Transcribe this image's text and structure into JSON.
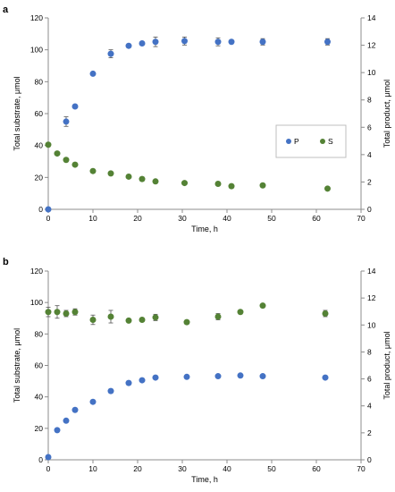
{
  "chart_data": [
    {
      "panel_label": "a",
      "type": "scatter",
      "xlabel": "Time, h",
      "ylabel_left": "Total substrate, μmol",
      "ylabel_right": "Total product, μmol",
      "xlim": [
        0,
        70
      ],
      "xticks": [
        0,
        10,
        20,
        30,
        40,
        50,
        60,
        70
      ],
      "ylim_left": [
        0,
        120
      ],
      "yticks_left": [
        0,
        20,
        40,
        60,
        80,
        100,
        120
      ],
      "ylim_right": [
        0,
        14
      ],
      "yticks_right": [
        0,
        2,
        4,
        6,
        8,
        10,
        12,
        14
      ],
      "grid": false,
      "legend_position": "center-right",
      "series": [
        {
          "name": "P",
          "axis": "left",
          "color": "#4472C4",
          "x": [
            0,
            4,
            6,
            10,
            14,
            18,
            21,
            24,
            30.5,
            38,
            41,
            48,
            62.5
          ],
          "y": [
            0,
            55,
            64.5,
            85,
            97.5,
            102.5,
            104,
            105,
            105.5,
            105,
            105,
            105,
            105
          ],
          "err": [
            0,
            3,
            0,
            0,
            2.5,
            0,
            0,
            3,
            2.5,
            2.5,
            0,
            2,
            2
          ]
        },
        {
          "name": "S",
          "axis": "left",
          "color": "#548235",
          "x": [
            0,
            2,
            4,
            6,
            10,
            14,
            18,
            21,
            24,
            30.5,
            38,
            41,
            48,
            62.5
          ],
          "y": [
            40.5,
            35,
            31,
            28,
            24,
            22.5,
            20.5,
            19,
            17.5,
            16.5,
            16,
            14.5,
            15,
            13
          ],
          "err": [
            0,
            0,
            0,
            0,
            0,
            0,
            0,
            0,
            0,
            0,
            0,
            0,
            0,
            0
          ]
        }
      ]
    },
    {
      "panel_label": "b",
      "type": "scatter",
      "xlabel": "Time, h",
      "ylabel_left": "Total substrate, μmol",
      "ylabel_right": "Total product, μmol",
      "xlim": [
        0,
        70
      ],
      "xticks": [
        0,
        10,
        20,
        30,
        40,
        50,
        60,
        70
      ],
      "ylim_left": [
        0,
        120
      ],
      "yticks_left": [
        0,
        20,
        40,
        60,
        80,
        100,
        120
      ],
      "ylim_right": [
        0,
        14
      ],
      "yticks_right": [
        0,
        2,
        4,
        6,
        8,
        10,
        12,
        14
      ],
      "grid": false,
      "series": [
        {
          "axis": "left",
          "color": "#548235",
          "x": [
            0,
            2,
            4,
            6,
            10,
            14,
            18,
            21,
            24,
            31,
            38,
            43,
            48,
            62
          ],
          "y": [
            94,
            94,
            93,
            94,
            89,
            91,
            88.5,
            89,
            90.5,
            87.5,
            91,
            94,
            98,
            93
          ],
          "err": [
            3,
            4,
            2,
            2,
            3,
            4,
            0,
            0,
            2,
            0,
            2,
            0,
            0,
            2
          ]
        },
        {
          "axis": "right",
          "color": "#4472C4",
          "x": [
            0,
            2,
            4,
            6,
            10,
            14,
            18,
            21,
            24,
            31,
            38,
            43,
            48,
            62
          ],
          "y": [
            0.2,
            2.2,
            2.9,
            3.7,
            4.3,
            5.1,
            5.7,
            5.9,
            6.1,
            6.15,
            6.2,
            6.25,
            6.2,
            6.1
          ],
          "err": [
            0,
            0,
            0,
            0,
            0,
            0,
            0,
            0,
            0,
            0,
            0,
            0,
            0,
            0
          ]
        }
      ]
    }
  ]
}
